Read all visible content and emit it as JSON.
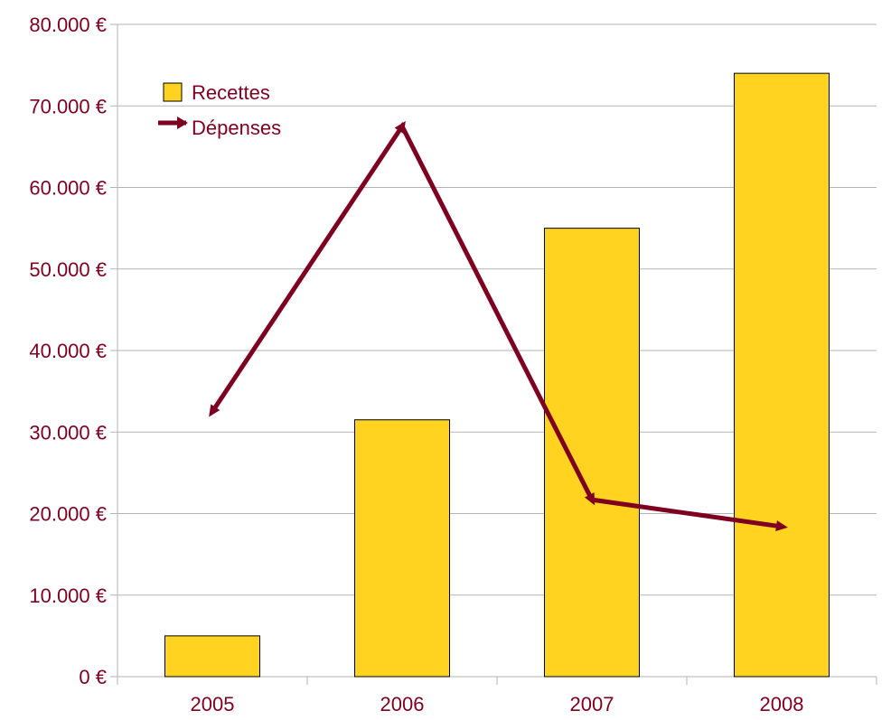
{
  "chart_data": {
    "type": "bar",
    "categories": [
      "2005",
      "2006",
      "2007",
      "2008"
    ],
    "series": [
      {
        "name": "Recettes",
        "type": "bar",
        "values": [
          5000,
          31500,
          55000,
          74000
        ],
        "color": "#FFD320"
      },
      {
        "name": "Dépenses",
        "type": "line",
        "values": [
          32500,
          67500,
          21700,
          18400
        ],
        "color": "#7E0021"
      }
    ],
    "ylim": [
      0,
      80000
    ],
    "yticks": [
      {
        "value": 0,
        "label": "0 €"
      },
      {
        "value": 10000,
        "label": "10.000 €"
      },
      {
        "value": 20000,
        "label": "20.000 €"
      },
      {
        "value": 30000,
        "label": "30.000 €"
      },
      {
        "value": 40000,
        "label": "40.000 €"
      },
      {
        "value": 50000,
        "label": "50.000 €"
      },
      {
        "value": 60000,
        "label": "60.000 €"
      },
      {
        "value": 70000,
        "label": "70.000 €"
      },
      {
        "value": 80000,
        "label": "80.000 €"
      }
    ],
    "title": "",
    "xlabel": "",
    "ylabel": "",
    "grid": "horizontal",
    "legend_position": "top-left",
    "text_color": "#7E0021",
    "grid_color": "#B3B3B3",
    "bar_border_color": "#000000"
  }
}
